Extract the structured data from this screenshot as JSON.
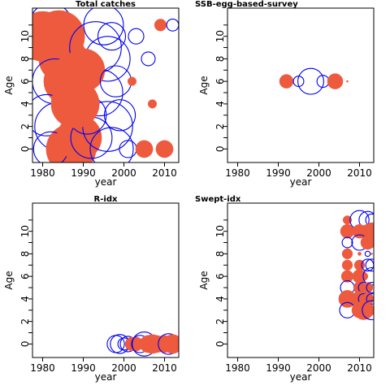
{
  "colors": {
    "positive": "#ee5a3e",
    "negative": "#0000ee",
    "frame": "#000000"
  },
  "chart_data": [
    {
      "type": "scatter",
      "title": "Total catches",
      "xlabel": "year",
      "ylabel": "Age",
      "xlim": [
        1977.5,
        2013.5
      ],
      "ylim": [
        -1.2,
        12.5
      ],
      "xticks": [
        1980,
        1990,
        2000,
        2010
      ],
      "yticks": [
        0,
        2,
        4,
        6,
        8,
        10
      ],
      "residuals": [
        {
          "x": 1980,
          "y": 10,
          "r": 2.9
        },
        {
          "x": 1982,
          "y": 11,
          "r": -2.5
        },
        {
          "x": 1984,
          "y": 10,
          "r": 3.0
        },
        {
          "x": 1985,
          "y": 8,
          "r": 2.8
        },
        {
          "x": 1983,
          "y": 6,
          "r": -2.6
        },
        {
          "x": 1986,
          "y": 6,
          "r": 2.7
        },
        {
          "x": 1981,
          "y": 3,
          "r": -2.4
        },
        {
          "x": 1984,
          "y": 2,
          "r": -2.8
        },
        {
          "x": 1987,
          "y": 0,
          "r": 2.9
        },
        {
          "x": 1982,
          "y": 0,
          "r": -2.0
        },
        {
          "x": 1989,
          "y": 1,
          "r": 2.6
        },
        {
          "x": 1991,
          "y": 3,
          "r": -2.2
        },
        {
          "x": 1993,
          "y": 9,
          "r": -3.0
        },
        {
          "x": 1994,
          "y": 5,
          "r": -2.7
        },
        {
          "x": 1996,
          "y": 8,
          "r": -2.6
        },
        {
          "x": 1995,
          "y": 11,
          "r": -2.3
        },
        {
          "x": 1996,
          "y": 2,
          "r": -2.9
        },
        {
          "x": 1992,
          "y": 1,
          "r": -2.4
        },
        {
          "x": 1997,
          "y": 0,
          "r": -2.5
        },
        {
          "x": 1990,
          "y": 7,
          "r": 2.5
        },
        {
          "x": 1988,
          "y": 4,
          "r": 2.8
        },
        {
          "x": 1998,
          "y": 6,
          "r": -1.8
        },
        {
          "x": 1999,
          "y": 3,
          "r": -1.8
        },
        {
          "x": 1997,
          "y": 10,
          "r": -1.6
        },
        {
          "x": 2001,
          "y": 0,
          "r": -1.0
        },
        {
          "x": 2003,
          "y": 10,
          "r": -0.9
        },
        {
          "x": 2005,
          "y": 0,
          "r": 1.0
        },
        {
          "x": 2006,
          "y": 8,
          "r": -0.8
        },
        {
          "x": 2009,
          "y": 11,
          "r": 0.7
        },
        {
          "x": 2010,
          "y": 0,
          "r": 1.0
        },
        {
          "x": 2012,
          "y": 11,
          "r": -0.7
        },
        {
          "x": 2007,
          "y": 4,
          "r": 0.5
        },
        {
          "x": 2002,
          "y": 6,
          "r": 0.5
        }
      ]
    },
    {
      "type": "scatter",
      "title": "SSB-egg-based-survey",
      "xlabel": "year",
      "ylabel": "Age",
      "xlim": [
        1977.5,
        2013.5
      ],
      "ylim": [
        -1.2,
        12.5
      ],
      "xticks": [
        1980,
        1990,
        2000,
        2010
      ],
      "yticks": [
        0,
        2,
        4,
        6,
        8,
        10
      ],
      "residuals": [
        {
          "x": 1992,
          "y": 6,
          "r": 0.8
        },
        {
          "x": 1995,
          "y": 6,
          "r": -0.6
        },
        {
          "x": 1998,
          "y": 6,
          "r": -1.5
        },
        {
          "x": 2001,
          "y": 6,
          "r": -0.7
        },
        {
          "x": 2004,
          "y": 6,
          "r": 0.9
        },
        {
          "x": 2007,
          "y": 6,
          "r": 0.1
        }
      ]
    },
    {
      "type": "scatter",
      "title": "R-idx",
      "xlabel": "year",
      "ylabel": "Age",
      "xlim": [
        1977.5,
        2013.5
      ],
      "ylim": [
        -1.2,
        12.5
      ],
      "xticks": [
        1980,
        1990,
        2000,
        2010
      ],
      "yticks": [
        0,
        2,
        4,
        6,
        8,
        10
      ],
      "residuals": [
        {
          "x": 1998,
          "y": 0,
          "r": -1.0
        },
        {
          "x": 1999,
          "y": 0,
          "r": -1.1
        },
        {
          "x": 2000,
          "y": 0,
          "r": -0.7
        },
        {
          "x": 2001,
          "y": 0,
          "r": -0.9
        },
        {
          "x": 2002,
          "y": 0,
          "r": 0.8
        },
        {
          "x": 2003,
          "y": 0,
          "r": 0.8
        },
        {
          "x": 2004,
          "y": 0,
          "r": -1.0
        },
        {
          "x": 2005,
          "y": 0,
          "r": -1.4
        },
        {
          "x": 2006,
          "y": 0,
          "r": 1.0
        },
        {
          "x": 2007,
          "y": 0,
          "r": 1.1
        },
        {
          "x": 2008,
          "y": 0,
          "r": 1.0
        },
        {
          "x": 2009,
          "y": 0,
          "r": 0.9
        },
        {
          "x": 2010,
          "y": 0,
          "r": 1.0
        },
        {
          "x": 2011,
          "y": 0,
          "r": -1.2
        },
        {
          "x": 2012,
          "y": 0,
          "r": 1.1
        },
        {
          "x": 2013,
          "y": 0,
          "r": 0.9
        }
      ]
    },
    {
      "type": "scatter",
      "title": "Swept-idx",
      "xlabel": "year",
      "ylabel": "Age",
      "xlim": [
        1977.5,
        2013.5
      ],
      "ylim": [
        -1.2,
        12.5
      ],
      "xticks": [
        1980,
        1990,
        2000,
        2010
      ],
      "yticks": [
        0,
        2,
        4,
        6,
        8,
        10
      ],
      "residuals": [
        {
          "x": 2007,
          "y": 11,
          "r": 0.5
        },
        {
          "x": 2010,
          "y": 11,
          "r": -1.1
        },
        {
          "x": 2012,
          "y": 11,
          "r": -1.0
        },
        {
          "x": 2013,
          "y": 11,
          "r": -0.7
        },
        {
          "x": 2007,
          "y": 10,
          "r": 0.8
        },
        {
          "x": 2010,
          "y": 10,
          "r": 0.8
        },
        {
          "x": 2012,
          "y": 10,
          "r": 0.8
        },
        {
          "x": 2013,
          "y": 10,
          "r": 1.0
        },
        {
          "x": 2007,
          "y": 9,
          "r": -0.6
        },
        {
          "x": 2010,
          "y": 9,
          "r": -0.9
        },
        {
          "x": 2012,
          "y": 9,
          "r": 0.8
        },
        {
          "x": 2013,
          "y": 9,
          "r": 0.6
        },
        {
          "x": 2007,
          "y": 8,
          "r": 0.6
        },
        {
          "x": 2010,
          "y": 8,
          "r": 0.2
        },
        {
          "x": 2012,
          "y": 8,
          "r": -0.3
        },
        {
          "x": 2013,
          "y": 8,
          "r": 0.1
        },
        {
          "x": 2007,
          "y": 7,
          "r": 0.6
        },
        {
          "x": 2010,
          "y": 7,
          "r": 0.6
        },
        {
          "x": 2012,
          "y": 7,
          "r": -0.7
        },
        {
          "x": 2013,
          "y": 7,
          "r": -0.7
        },
        {
          "x": 2007,
          "y": 6,
          "r": 0.7
        },
        {
          "x": 2010,
          "y": 6,
          "r": 0.8
        },
        {
          "x": 2011,
          "y": 6,
          "r": 0.5
        },
        {
          "x": 2013,
          "y": 6,
          "r": -1.0
        },
        {
          "x": 2007,
          "y": 5,
          "r": -0.8
        },
        {
          "x": 2010,
          "y": 5,
          "r": 0.7
        },
        {
          "x": 2011,
          "y": 5,
          "r": -0.6
        },
        {
          "x": 2012,
          "y": 5,
          "r": 0.6
        },
        {
          "x": 2013,
          "y": 5,
          "r": -0.6
        },
        {
          "x": 2007,
          "y": 4,
          "r": 1.0
        },
        {
          "x": 2010,
          "y": 4,
          "r": 0.9
        },
        {
          "x": 2011,
          "y": 4,
          "r": -0.6
        },
        {
          "x": 2012,
          "y": 4,
          "r": 0.7
        },
        {
          "x": 2013,
          "y": 4,
          "r": -0.6
        },
        {
          "x": 2007,
          "y": 3,
          "r": -0.9
        },
        {
          "x": 2010,
          "y": 3,
          "r": 0.9
        },
        {
          "x": 2011,
          "y": 3,
          "r": 1.1
        },
        {
          "x": 2012,
          "y": 3,
          "r": 0.8
        },
        {
          "x": 2013,
          "y": 3,
          "r": -1.1
        }
      ]
    }
  ]
}
